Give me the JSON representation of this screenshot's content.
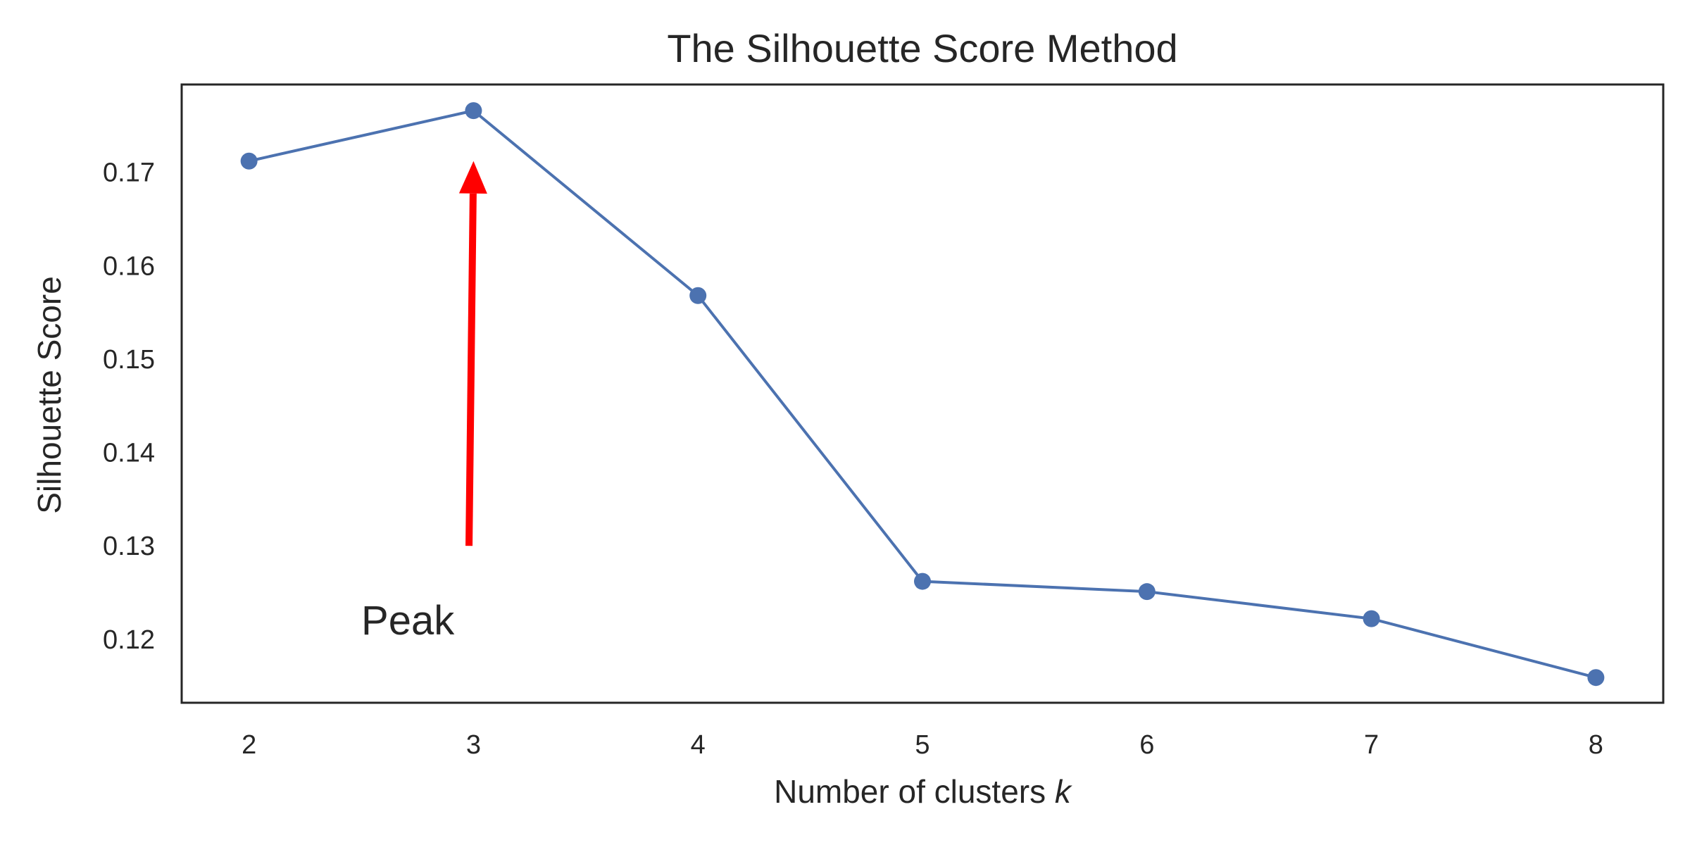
{
  "chart_data": {
    "type": "line",
    "title": "The Silhouette Score Method",
    "xlabel_text": "Number of clusters ",
    "xlabel_var": "k",
    "ylabel": "Silhouette Score",
    "x": [
      2,
      3,
      4,
      5,
      6,
      7,
      8
    ],
    "y": [
      0.1712,
      0.1766,
      0.1568,
      0.1262,
      0.1251,
      0.1222,
      0.1159
    ],
    "xlim": [
      1.7,
      8.3
    ],
    "ylim": [
      0.1132,
      0.1794
    ],
    "xticks": [
      2,
      3,
      4,
      5,
      6,
      7,
      8
    ],
    "yticks": [
      0.12,
      0.13,
      0.14,
      0.15,
      0.16,
      0.17
    ],
    "grid": false,
    "line_color": "#4c72b0",
    "annotation": {
      "text": "Peak",
      "text_x": 2.5,
      "text_y": 0.1205,
      "arrow_from": [
        2.98,
        0.13
      ],
      "arrow_to": [
        3.0,
        0.1712
      ],
      "color": "#ff0000"
    }
  }
}
